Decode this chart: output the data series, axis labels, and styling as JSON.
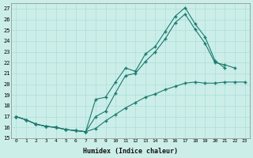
{
  "xlabel": "Humidex (Indice chaleur)",
  "bg_color": "#cceee8",
  "grid_color": "#aadddd",
  "line_color": "#1a7a6e",
  "xlim": [
    -0.5,
    23.5
  ],
  "ylim": [
    15.0,
    27.5
  ],
  "yticks": [
    15,
    16,
    17,
    18,
    19,
    20,
    21,
    22,
    23,
    24,
    25,
    26,
    27
  ],
  "xticks": [
    0,
    1,
    2,
    3,
    4,
    5,
    6,
    7,
    8,
    9,
    10,
    11,
    12,
    13,
    14,
    15,
    16,
    17,
    18,
    19,
    20,
    21,
    22,
    23
  ],
  "line1_x": [
    0,
    1,
    2,
    3,
    4,
    5,
    6,
    7,
    8,
    9,
    10,
    11,
    12,
    13,
    14,
    15,
    16,
    17,
    18,
    19,
    20,
    21
  ],
  "line1_y": [
    17.0,
    16.7,
    16.3,
    16.1,
    16.0,
    15.8,
    15.7,
    15.6,
    18.6,
    18.8,
    20.2,
    21.5,
    21.2,
    22.8,
    23.5,
    24.9,
    26.3,
    27.1,
    25.6,
    24.4,
    22.2,
    21.5
  ],
  "line2_x": [
    0,
    1,
    2,
    3,
    4,
    5,
    6,
    7,
    8,
    9,
    10,
    11,
    12,
    13,
    14,
    15,
    16,
    17,
    18,
    19,
    20,
    21,
    22
  ],
  "line2_y": [
    17.0,
    16.7,
    16.3,
    16.1,
    16.0,
    15.8,
    15.7,
    15.6,
    17.0,
    17.5,
    19.2,
    20.8,
    21.0,
    22.1,
    23.0,
    24.2,
    25.7,
    26.5,
    25.1,
    23.8,
    22.0,
    21.8,
    21.5
  ],
  "line3_x": [
    0,
    1,
    2,
    3,
    4,
    5,
    6,
    7,
    8,
    9,
    10,
    11,
    12,
    13,
    14,
    15,
    16,
    17,
    18,
    19,
    20,
    21,
    22,
    23
  ],
  "line3_y": [
    17.0,
    16.7,
    16.3,
    16.1,
    16.0,
    15.8,
    15.7,
    15.6,
    15.9,
    16.6,
    17.2,
    17.8,
    18.3,
    18.8,
    19.1,
    19.5,
    19.8,
    20.1,
    20.2,
    20.1,
    20.1,
    20.2,
    20.2,
    20.2
  ]
}
